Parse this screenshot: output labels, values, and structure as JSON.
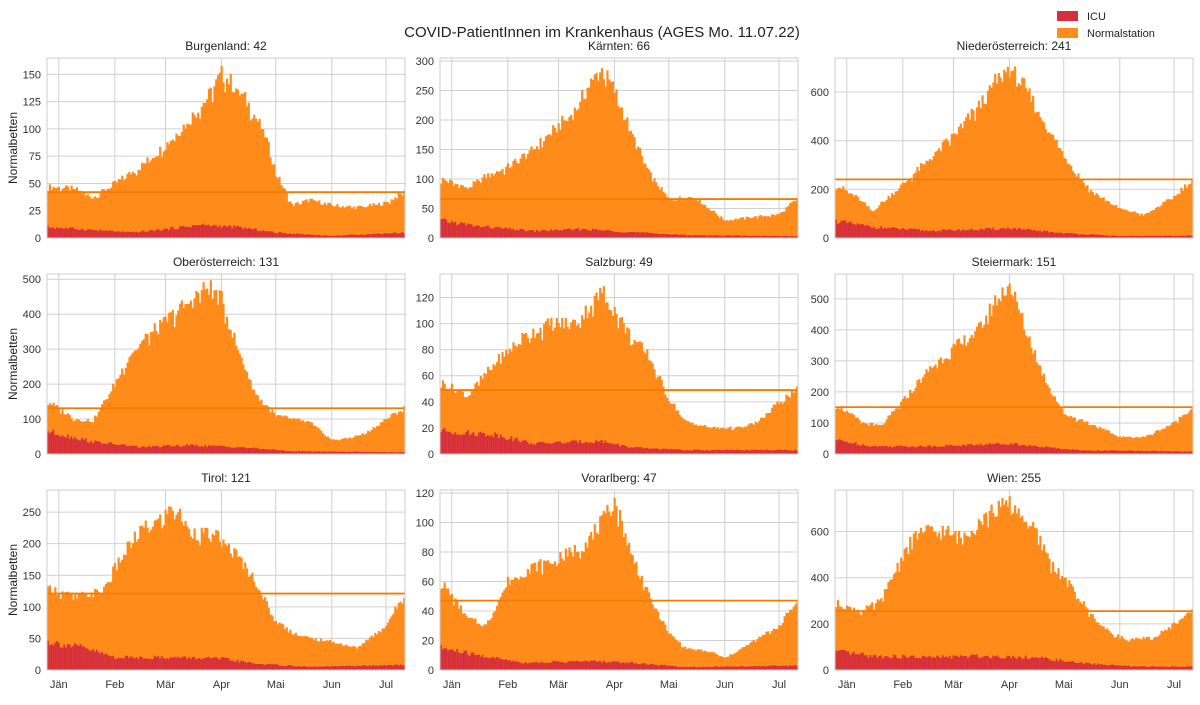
{
  "colors": {
    "icu": "#d62f3b",
    "normal": "#ff8c1a",
    "reference_line": "#f57c00",
    "grid": "#d0d0d0",
    "frame": "#cccccc"
  },
  "chart_data": {
    "type": "bar",
    "title": "COVID-PatientInnen im Krankenhaus (AGES Mo. 11.07.22)",
    "legend": {
      "placement": "top-right",
      "entries": [
        {
          "label": "ICU",
          "color": "#d62f3b"
        },
        {
          "label": "Normalstation",
          "color": "#ff8c1a"
        }
      ]
    },
    "ylabel": "Normalbetten",
    "x_range": [
      "2021-12-26",
      "2022-07-11"
    ],
    "x_ticks": [
      {
        "date": "2022-01-01",
        "label": "Jän"
      },
      {
        "date": "2022-02-01",
        "label": "Feb"
      },
      {
        "date": "2022-03-01",
        "label": "Mär"
      },
      {
        "date": "2022-04-01",
        "label": "Apr"
      },
      {
        "date": "2022-05-01",
        "label": "Mai"
      },
      {
        "date": "2022-06-01",
        "label": "Jun"
      },
      {
        "date": "2022-07-01",
        "label": "Jul"
      }
    ],
    "grid": true,
    "panels": [
      {
        "title": "Burgenland: 42",
        "current": 42,
        "ylim": [
          0,
          165
        ],
        "yticks": [
          0,
          25,
          50,
          75,
          100,
          125,
          150
        ],
        "normal": [
          [
            "2021-12-26",
            47
          ],
          [
            "2022-01-10",
            45
          ],
          [
            "2022-01-20",
            37
          ],
          [
            "2022-02-01",
            50
          ],
          [
            "2022-02-15",
            65
          ],
          [
            "2022-03-01",
            85
          ],
          [
            "2022-03-15",
            110
          ],
          [
            "2022-03-25",
            130
          ],
          [
            "2022-04-01",
            150
          ],
          [
            "2022-04-05",
            145
          ],
          [
            "2022-04-15",
            125
          ],
          [
            "2022-04-25",
            95
          ],
          [
            "2022-05-01",
            60
          ],
          [
            "2022-05-10",
            30
          ],
          [
            "2022-05-20",
            35
          ],
          [
            "2022-06-01",
            30
          ],
          [
            "2022-06-15",
            28
          ],
          [
            "2022-07-01",
            32
          ],
          [
            "2022-07-11",
            42
          ]
        ],
        "icu": [
          [
            "2021-12-26",
            10
          ],
          [
            "2022-01-15",
            8
          ],
          [
            "2022-02-10",
            5
          ],
          [
            "2022-03-01",
            8
          ],
          [
            "2022-03-20",
            12
          ],
          [
            "2022-04-10",
            10
          ],
          [
            "2022-05-01",
            5
          ],
          [
            "2022-06-01",
            2
          ],
          [
            "2022-07-11",
            5
          ]
        ]
      },
      {
        "title": "Kärnten: 66",
        "current": 66,
        "ylim": [
          0,
          305
        ],
        "yticks": [
          0,
          50,
          100,
          150,
          200,
          250,
          300
        ],
        "normal": [
          [
            "2021-12-26",
            100
          ],
          [
            "2022-01-10",
            85
          ],
          [
            "2022-01-20",
            105
          ],
          [
            "2022-02-01",
            120
          ],
          [
            "2022-02-15",
            150
          ],
          [
            "2022-03-01",
            190
          ],
          [
            "2022-03-10",
            215
          ],
          [
            "2022-03-20",
            270
          ],
          [
            "2022-03-25",
            285
          ],
          [
            "2022-04-01",
            250
          ],
          [
            "2022-04-10",
            180
          ],
          [
            "2022-04-20",
            110
          ],
          [
            "2022-05-01",
            65
          ],
          [
            "2022-05-15",
            70
          ],
          [
            "2022-06-01",
            30
          ],
          [
            "2022-06-15",
            35
          ],
          [
            "2022-07-01",
            40
          ],
          [
            "2022-07-11",
            66
          ]
        ],
        "icu": [
          [
            "2021-12-26",
            30
          ],
          [
            "2022-01-15",
            20
          ],
          [
            "2022-02-15",
            12
          ],
          [
            "2022-03-15",
            15
          ],
          [
            "2022-04-10",
            10
          ],
          [
            "2022-05-10",
            5
          ],
          [
            "2022-07-11",
            3
          ]
        ]
      },
      {
        "title": "Niederösterreich: 241",
        "current": 241,
        "ylim": [
          0,
          740
        ],
        "yticks": [
          0,
          200,
          400,
          600
        ],
        "normal": [
          [
            "2021-12-26",
            220
          ],
          [
            "2022-01-08",
            160
          ],
          [
            "2022-01-15",
            110
          ],
          [
            "2022-02-01",
            220
          ],
          [
            "2022-02-15",
            320
          ],
          [
            "2022-03-01",
            420
          ],
          [
            "2022-03-15",
            540
          ],
          [
            "2022-03-25",
            650
          ],
          [
            "2022-04-01",
            700
          ],
          [
            "2022-04-10",
            610
          ],
          [
            "2022-04-20",
            480
          ],
          [
            "2022-05-01",
            340
          ],
          [
            "2022-05-15",
            200
          ],
          [
            "2022-06-01",
            120
          ],
          [
            "2022-06-15",
            95
          ],
          [
            "2022-07-01",
            170
          ],
          [
            "2022-07-11",
            241
          ]
        ],
        "icu": [
          [
            "2021-12-26",
            70
          ],
          [
            "2022-01-15",
            45
          ],
          [
            "2022-02-15",
            30
          ],
          [
            "2022-03-15",
            35
          ],
          [
            "2022-04-01",
            40
          ],
          [
            "2022-05-01",
            20
          ],
          [
            "2022-06-01",
            8
          ],
          [
            "2022-07-11",
            10
          ]
        ]
      },
      {
        "title": "Oberösterreich: 131",
        "current": 131,
        "ylim": [
          0,
          515
        ],
        "yticks": [
          0,
          100,
          200,
          300,
          400,
          500
        ],
        "normal": [
          [
            "2021-12-26",
            150
          ],
          [
            "2022-01-10",
            100
          ],
          [
            "2022-01-20",
            95
          ],
          [
            "2022-02-01",
            200
          ],
          [
            "2022-02-10",
            290
          ],
          [
            "2022-02-20",
            340
          ],
          [
            "2022-03-01",
            380
          ],
          [
            "2022-03-15",
            440
          ],
          [
            "2022-03-25",
            480
          ],
          [
            "2022-04-01",
            440
          ],
          [
            "2022-04-10",
            300
          ],
          [
            "2022-04-20",
            170
          ],
          [
            "2022-05-01",
            110
          ],
          [
            "2022-05-20",
            90
          ],
          [
            "2022-06-01",
            40
          ],
          [
            "2022-06-10",
            45
          ],
          [
            "2022-06-20",
            60
          ],
          [
            "2022-07-01",
            100
          ],
          [
            "2022-07-11",
            131
          ]
        ],
        "icu": [
          [
            "2021-12-26",
            65
          ],
          [
            "2022-01-20",
            35
          ],
          [
            "2022-02-15",
            20
          ],
          [
            "2022-03-15",
            25
          ],
          [
            "2022-04-10",
            20
          ],
          [
            "2022-05-10",
            8
          ],
          [
            "2022-07-11",
            5
          ]
        ]
      },
      {
        "title": "Salzburg: 49",
        "current": 49,
        "ylim": [
          0,
          138
        ],
        "yticks": [
          0,
          20,
          40,
          60,
          80,
          100,
          120
        ],
        "normal": [
          [
            "2021-12-26",
            55
          ],
          [
            "2022-01-10",
            45
          ],
          [
            "2022-01-25",
            70
          ],
          [
            "2022-02-10",
            90
          ],
          [
            "2022-02-25",
            100
          ],
          [
            "2022-03-10",
            100
          ],
          [
            "2022-03-20",
            115
          ],
          [
            "2022-03-25",
            125
          ],
          [
            "2022-04-01",
            110
          ],
          [
            "2022-04-10",
            90
          ],
          [
            "2022-04-20",
            75
          ],
          [
            "2022-04-30",
            45
          ],
          [
            "2022-05-10",
            25
          ],
          [
            "2022-05-25",
            20
          ],
          [
            "2022-06-10",
            20
          ],
          [
            "2022-06-20",
            25
          ],
          [
            "2022-07-01",
            40
          ],
          [
            "2022-07-11",
            49
          ]
        ],
        "icu": [
          [
            "2021-12-26",
            18
          ],
          [
            "2022-01-10",
            16
          ],
          [
            "2022-01-25",
            15
          ],
          [
            "2022-02-15",
            8
          ],
          [
            "2022-03-25",
            10
          ],
          [
            "2022-04-10",
            5
          ],
          [
            "2022-05-10",
            3
          ],
          [
            "2022-07-11",
            3
          ]
        ]
      },
      {
        "title": "Steiermark: 151",
        "current": 151,
        "ylim": [
          0,
          580
        ],
        "yticks": [
          0,
          100,
          200,
          300,
          400,
          500
        ],
        "normal": [
          [
            "2021-12-26",
            160
          ],
          [
            "2022-01-10",
            100
          ],
          [
            "2022-01-20",
            90
          ],
          [
            "2022-02-01",
            170
          ],
          [
            "2022-02-15",
            270
          ],
          [
            "2022-03-01",
            340
          ],
          [
            "2022-03-15",
            400
          ],
          [
            "2022-03-25",
            500
          ],
          [
            "2022-04-01",
            550
          ],
          [
            "2022-04-10",
            400
          ],
          [
            "2022-04-20",
            250
          ],
          [
            "2022-05-01",
            130
          ],
          [
            "2022-05-15",
            100
          ],
          [
            "2022-06-01",
            55
          ],
          [
            "2022-06-15",
            55
          ],
          [
            "2022-07-01",
            100
          ],
          [
            "2022-07-11",
            151
          ]
        ],
        "icu": [
          [
            "2021-12-26",
            45
          ],
          [
            "2022-01-15",
            25
          ],
          [
            "2022-02-15",
            25
          ],
          [
            "2022-03-15",
            30
          ],
          [
            "2022-04-01",
            35
          ],
          [
            "2022-04-15",
            25
          ],
          [
            "2022-05-10",
            12
          ],
          [
            "2022-07-11",
            8
          ]
        ]
      },
      {
        "title": "Tirol: 121",
        "current": 121,
        "ylim": [
          0,
          285
        ],
        "yticks": [
          0,
          50,
          100,
          150,
          200,
          250
        ],
        "normal": [
          [
            "2021-12-26",
            130
          ],
          [
            "2022-01-10",
            115
          ],
          [
            "2022-01-25",
            125
          ],
          [
            "2022-02-05",
            180
          ],
          [
            "2022-02-15",
            220
          ],
          [
            "2022-02-28",
            240
          ],
          [
            "2022-03-05",
            260
          ],
          [
            "2022-03-15",
            220
          ],
          [
            "2022-03-30",
            210
          ],
          [
            "2022-04-10",
            180
          ],
          [
            "2022-04-20",
            140
          ],
          [
            "2022-04-30",
            80
          ],
          [
            "2022-05-10",
            60
          ],
          [
            "2022-05-20",
            50
          ],
          [
            "2022-06-01",
            45
          ],
          [
            "2022-06-15",
            35
          ],
          [
            "2022-07-01",
            70
          ],
          [
            "2022-07-11",
            121
          ]
        ],
        "icu": [
          [
            "2021-12-26",
            45
          ],
          [
            "2022-01-15",
            35
          ],
          [
            "2022-02-01",
            20
          ],
          [
            "2022-03-01",
            20
          ],
          [
            "2022-04-01",
            18
          ],
          [
            "2022-04-20",
            10
          ],
          [
            "2022-05-20",
            5
          ],
          [
            "2022-07-11",
            8
          ]
        ]
      },
      {
        "title": "Vorarlberg: 47",
        "current": 47,
        "ylim": [
          0,
          122
        ],
        "yticks": [
          0,
          20,
          40,
          60,
          80,
          100,
          120
        ],
        "normal": [
          [
            "2021-12-26",
            60
          ],
          [
            "2022-01-10",
            35
          ],
          [
            "2022-01-20",
            30
          ],
          [
            "2022-02-01",
            60
          ],
          [
            "2022-02-15",
            70
          ],
          [
            "2022-03-01",
            75
          ],
          [
            "2022-03-15",
            85
          ],
          [
            "2022-03-25",
            100
          ],
          [
            "2022-04-01",
            115
          ],
          [
            "2022-04-10",
            80
          ],
          [
            "2022-04-20",
            50
          ],
          [
            "2022-05-01",
            25
          ],
          [
            "2022-05-10",
            15
          ],
          [
            "2022-05-25",
            12
          ],
          [
            "2022-06-01",
            8
          ],
          [
            "2022-06-15",
            18
          ],
          [
            "2022-07-01",
            30
          ],
          [
            "2022-07-11",
            47
          ]
        ],
        "icu": [
          [
            "2021-12-26",
            15
          ],
          [
            "2022-01-15",
            10
          ],
          [
            "2022-02-10",
            5
          ],
          [
            "2022-03-20",
            6
          ],
          [
            "2022-04-10",
            5
          ],
          [
            "2022-05-10",
            2
          ],
          [
            "2022-07-11",
            3
          ]
        ]
      },
      {
        "title": "Wien: 255",
        "current": 255,
        "ylim": [
          0,
          780
        ],
        "yticks": [
          0,
          200,
          400,
          600
        ],
        "normal": [
          [
            "2021-12-26",
            290
          ],
          [
            "2022-01-10",
            255
          ],
          [
            "2022-01-20",
            300
          ],
          [
            "2022-02-01",
            500
          ],
          [
            "2022-02-10",
            600
          ],
          [
            "2022-02-25",
            600
          ],
          [
            "2022-03-05",
            570
          ],
          [
            "2022-03-15",
            650
          ],
          [
            "2022-03-30",
            720
          ],
          [
            "2022-04-05",
            700
          ],
          [
            "2022-04-15",
            600
          ],
          [
            "2022-04-25",
            450
          ],
          [
            "2022-05-05",
            360
          ],
          [
            "2022-05-15",
            250
          ],
          [
            "2022-05-25",
            170
          ],
          [
            "2022-06-05",
            130
          ],
          [
            "2022-06-20",
            140
          ],
          [
            "2022-07-01",
            200
          ],
          [
            "2022-07-11",
            255
          ]
        ],
        "icu": [
          [
            "2021-12-26",
            80
          ],
          [
            "2022-01-15",
            60
          ],
          [
            "2022-02-15",
            55
          ],
          [
            "2022-03-15",
            60
          ],
          [
            "2022-04-15",
            55
          ],
          [
            "2022-05-10",
            30
          ],
          [
            "2022-06-10",
            15
          ],
          [
            "2022-07-11",
            15
          ]
        ]
      }
    ]
  }
}
